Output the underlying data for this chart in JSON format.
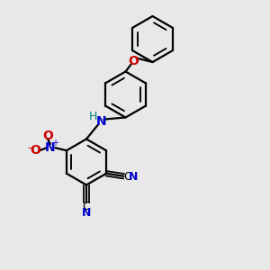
{
  "bg_color": "#e8e8e8",
  "bond_color": "#000000",
  "N_color": "#0000cc",
  "O_color": "#cc0000",
  "H_color": "#008080",
  "line_width": 1.6,
  "figsize": [
    3.0,
    3.0
  ],
  "dpi": 100,
  "xlim": [
    0,
    10
  ],
  "ylim": [
    0,
    10
  ]
}
